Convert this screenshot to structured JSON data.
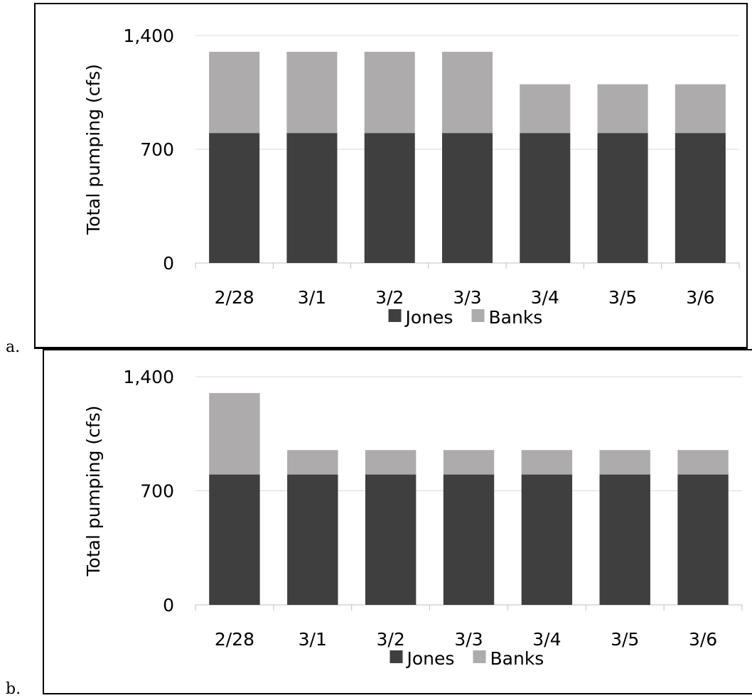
{
  "panels": [
    {
      "letter": "a."
    },
    {
      "letter": "b."
    }
  ],
  "colors": {
    "Jones": "#3f3f3f",
    "Banks": "#adabab",
    "grid": "#d9d9d9",
    "axis": "#bfbfbf"
  },
  "chart_data": [
    {
      "type": "bar",
      "stacked": true,
      "categories": [
        "2/28",
        "3/1",
        "3/2",
        "3/3",
        "3/4",
        "3/5",
        "3/6"
      ],
      "series": [
        {
          "name": "Jones",
          "values": [
            800,
            800,
            800,
            800,
            800,
            800,
            800
          ]
        },
        {
          "name": "Banks",
          "values": [
            500,
            500,
            500,
            500,
            300,
            300,
            300
          ]
        }
      ],
      "ylabel": "Total pumping (cfs)",
      "ylim": [
        0,
        1400
      ],
      "yticks": [
        0,
        700,
        1400
      ],
      "ytick_labels": [
        "0",
        "700",
        "1,400"
      ],
      "grid": true,
      "legend": "bottom"
    },
    {
      "type": "bar",
      "stacked": true,
      "categories": [
        "2/28",
        "3/1",
        "3/2",
        "3/3",
        "3/4",
        "3/5",
        "3/6"
      ],
      "series": [
        {
          "name": "Jones",
          "values": [
            800,
            800,
            800,
            800,
            800,
            800,
            800
          ]
        },
        {
          "name": "Banks",
          "values": [
            500,
            150,
            150,
            150,
            150,
            150,
            150
          ]
        }
      ],
      "ylabel": "Total pumping (cfs)",
      "ylim": [
        0,
        1400
      ],
      "yticks": [
        0,
        700,
        1400
      ],
      "ytick_labels": [
        "0",
        "700",
        "1,400"
      ],
      "grid": true,
      "legend": "bottom"
    }
  ]
}
